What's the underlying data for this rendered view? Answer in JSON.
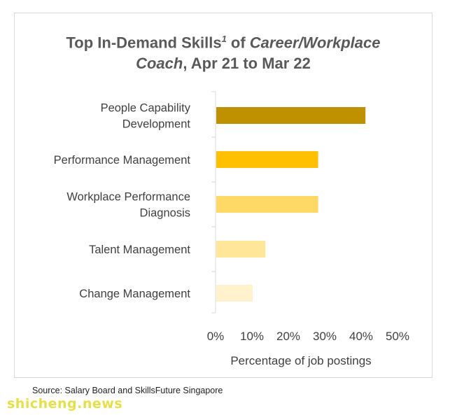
{
  "chart_data": {
    "type": "bar",
    "orientation": "horizontal",
    "title_parts": [
      {
        "text": "Top In-Demand Skills",
        "style": "bold"
      },
      {
        "text": "1",
        "style": "sup"
      },
      {
        "text": " of ",
        "style": "bold"
      },
      {
        "text": "Career/Workplace",
        "style": "italic"
      },
      {
        "text": "Coach",
        "style": "italic",
        "newline": true
      },
      {
        "text": ", Apr 21 to Mar 22",
        "style": "bold"
      }
    ],
    "categories": [
      [
        "People Capability",
        "Development"
      ],
      [
        "Performance Management"
      ],
      [
        "Workplace Performance",
        "Diagnosis"
      ],
      [
        "Talent Management"
      ],
      [
        "Change Management"
      ]
    ],
    "values": [
      41,
      28,
      28,
      13.5,
      10
    ],
    "bar_colors": [
      "#BF9000",
      "#FFC000",
      "#FFD966",
      "#FFE699",
      "#FFF2CC"
    ],
    "xlim": [
      0,
      50
    ],
    "ticks": [
      "0%",
      "10%",
      "20%",
      "30%",
      "40%",
      "50%"
    ],
    "xlabel": "Percentage of job postings",
    "grid": false
  },
  "source": "Source: Salary Board and SkillsFuture Singapore",
  "watermark": "shicheng.news"
}
